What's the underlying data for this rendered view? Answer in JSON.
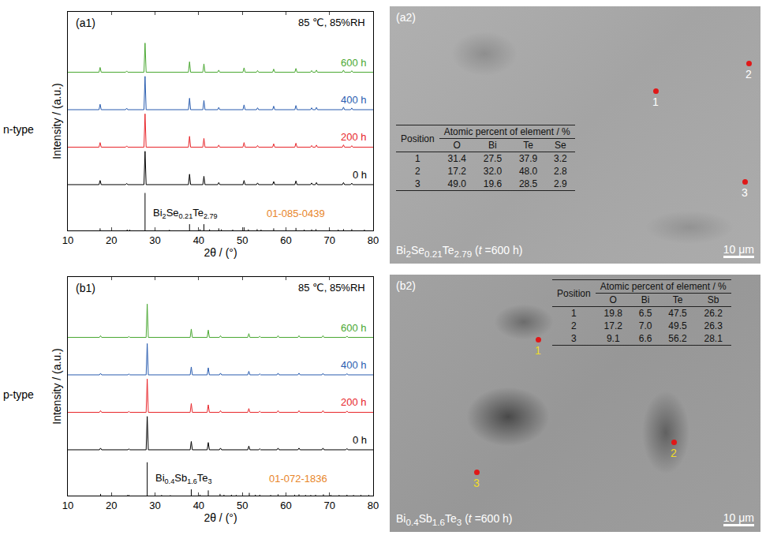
{
  "chart_data": [
    {
      "type": "line",
      "panel": "(a1)",
      "row_label": "n-type",
      "note": "85 ℃, 85%RH",
      "xlabel": "2θ / (°)",
      "ylabel": "Intensity / (a.u.)",
      "xlim": [
        10,
        80
      ],
      "xticks": [
        10,
        20,
        30,
        40,
        50,
        60,
        70,
        80
      ],
      "ylim": [
        0,
        105
      ],
      "tick_labels": "x",
      "grid": false,
      "x": [
        10,
        17.15,
        17.4,
        17.65,
        23.25,
        23.5,
        23.75,
        27.45,
        27.7,
        27.95,
        37.65,
        37.9,
        38.15,
        40.95,
        41.2,
        41.45,
        44.35,
        44.6,
        44.85,
        50.15,
        50.4,
        50.65,
        53.25,
        53.5,
        53.75,
        56.95,
        57.2,
        57.45,
        62.05,
        62.3,
        62.55,
        65.65,
        65.9,
        66.15,
        66.75,
        67.0,
        67.25,
        72.95,
        73.2,
        73.45,
        74.85,
        75.1,
        75.35,
        80
      ],
      "series": [
        {
          "name": "0 h",
          "color": "#000000",
          "values": [
            22,
            22,
            24,
            22,
            22,
            22.6,
            22,
            22,
            38,
            22,
            22,
            27,
            22,
            22,
            26,
            22,
            22,
            23,
            22,
            22,
            24,
            22,
            22,
            22.8,
            22,
            22,
            23.5,
            22,
            22,
            23.8,
            22,
            22,
            22.8,
            22,
            22,
            23,
            22,
            22,
            23,
            22,
            22,
            22.7,
            22,
            22
          ]
        },
        {
          "name": "200 h",
          "color": "#e8262b",
          "values": [
            40,
            40,
            42.2,
            40,
            40,
            40.6,
            40,
            40,
            56,
            40,
            40,
            45.2,
            40,
            40,
            44.2,
            40,
            40,
            41,
            40,
            40,
            42.2,
            40,
            40,
            40.8,
            40,
            40,
            41.6,
            40,
            40,
            41.9,
            40,
            40,
            40.8,
            40,
            40,
            41,
            40,
            40,
            41.1,
            40,
            40,
            40.7,
            40,
            40
          ]
        },
        {
          "name": "400 h",
          "color": "#2a5db0",
          "values": [
            58,
            58,
            60.6,
            58,
            58,
            58.7,
            58,
            58,
            74,
            58,
            58,
            63.5,
            58,
            58,
            62.4,
            58,
            58,
            59.1,
            58,
            58,
            60.3,
            58,
            58,
            58.9,
            58,
            58,
            59.7,
            58,
            58,
            60,
            58,
            58,
            58.9,
            58,
            58,
            59.1,
            58,
            58,
            59.2,
            58,
            58,
            58.8,
            58,
            58
          ]
        },
        {
          "name": "600 h",
          "color": "#4aa832",
          "values": [
            76,
            76,
            78.3,
            76,
            76,
            76.6,
            76,
            76,
            90,
            76,
            76,
            81,
            76,
            76,
            80,
            76,
            76,
            77,
            76,
            76,
            78.1,
            76,
            76,
            76.8,
            76,
            76,
            77.5,
            76,
            76,
            77.8,
            76,
            76,
            76.8,
            76,
            76,
            77,
            76,
            76,
            77,
            76,
            76,
            76.7,
            76,
            76
          ]
        }
      ],
      "reference": {
        "name": "Bi2Se0.21Te2.79",
        "color": "#000000",
        "card": {
          "text": "01-085-0439",
          "color": "#e8862a"
        },
        "x": [
          17.4,
          23.6,
          24.2,
          27.7,
          33.3,
          37.9,
          40.3,
          41.2,
          42.5,
          44.6,
          45.2,
          47.8,
          50.4,
          51.4,
          53.4,
          54.3,
          57.2,
          62.3,
          64.2,
          65.9,
          66.9,
          70.0,
          72.0,
          73.2,
          75.1,
          78.0
        ],
        "values": [
          1,
          0.4,
          0.3,
          18,
          0.3,
          3,
          0.5,
          3,
          0.5,
          1,
          0.5,
          0.4,
          1.5,
          0.5,
          0.6,
          0.4,
          1,
          1.2,
          0.4,
          0.5,
          0.6,
          0.4,
          0.4,
          0.6,
          0.6,
          0.4
        ]
      }
    },
    {
      "type": "line",
      "panel": "(b1)",
      "row_label": "p-type",
      "note": "85 ℃, 85%RH",
      "xlabel": "2θ / (°)",
      "ylabel": "Intensity / (a.u.)",
      "xlim": [
        10,
        80
      ],
      "xticks": [
        10,
        20,
        30,
        40,
        50,
        60,
        70,
        80
      ],
      "ylim": [
        0,
        105
      ],
      "tick_labels": "x",
      "grid": false,
      "x": [
        10,
        17.25,
        17.5,
        17.75,
        23.75,
        24.0,
        24.25,
        27.95,
        28.2,
        28.45,
        38.05,
        38.3,
        38.55,
        41.95,
        42.2,
        42.45,
        44.75,
        45.0,
        45.25,
        51.25,
        51.5,
        51.75,
        53.75,
        54.0,
        54.25,
        57.95,
        58.2,
        58.45,
        62.75,
        63.0,
        63.25,
        68.25,
        68.5,
        68.75,
        73.75,
        74.0,
        74.25,
        80
      ],
      "series": [
        {
          "name": "0 h",
          "color": "#000000",
          "values": [
            22,
            22,
            22.8,
            22,
            22,
            22.4,
            22,
            22,
            38,
            22,
            22,
            26,
            22,
            22,
            25.5,
            22,
            22,
            22.8,
            22,
            22,
            23.8,
            22,
            22,
            22.5,
            22,
            22,
            22.8,
            22,
            22,
            22.8,
            22,
            22,
            22.8,
            22,
            22,
            22.6,
            22,
            22
          ]
        },
        {
          "name": "200 h",
          "color": "#e8262b",
          "values": [
            40,
            40,
            40.8,
            40,
            40,
            40.4,
            40,
            40,
            56,
            40,
            40,
            44.2,
            40,
            40,
            43.6,
            40,
            40,
            40.8,
            40,
            40,
            41.8,
            40,
            40,
            40.5,
            40,
            40,
            40.8,
            40,
            40,
            40.8,
            40,
            40,
            40.8,
            40,
            40,
            40.6,
            40,
            40
          ]
        },
        {
          "name": "400 h",
          "color": "#2a5db0",
          "values": [
            58,
            58,
            58.7,
            58,
            58,
            58.4,
            58,
            58,
            73,
            58,
            58,
            61.8,
            58,
            58,
            61.4,
            58,
            58,
            58.8,
            58,
            58,
            59.7,
            58,
            58,
            58.5,
            58,
            58,
            58.8,
            58,
            58,
            58.8,
            58,
            58,
            58.7,
            58,
            58,
            58.6,
            58,
            58
          ]
        },
        {
          "name": "600 h",
          "color": "#4aa832",
          "values": [
            76,
            76,
            76.8,
            76,
            76,
            76.4,
            76,
            76,
            92,
            76,
            76,
            80,
            76,
            76,
            79.5,
            76,
            76,
            76.8,
            76,
            76,
            77.8,
            76,
            76,
            76.5,
            76,
            76,
            76.8,
            76,
            76,
            76.8,
            76,
            76,
            76.8,
            76,
            76,
            76.6,
            76,
            76
          ]
        }
      ],
      "reference": {
        "name": "Bi0.4Sb1.6Te3",
        "color": "#000000",
        "card": {
          "text": "01-072-1836",
          "color": "#e8862a"
        },
        "x": [
          17.5,
          23.7,
          24.0,
          28.2,
          31.5,
          33.5,
          38.3,
          40.3,
          42.2,
          44.9,
          45.8,
          47.5,
          48.6,
          51.6,
          53.0,
          54.0,
          56.5,
          58.2,
          62.0,
          63.0,
          64.5,
          65.7,
          66.8,
          68.6,
          70.3,
          72.2,
          74.0,
          75.5,
          77.2,
          79.0
        ],
        "values": [
          0.8,
          0.3,
          0.3,
          16,
          0.3,
          0.2,
          3,
          0.4,
          2.5,
          0.8,
          0.4,
          0.4,
          0.3,
          1.3,
          0.4,
          0.4,
          0.3,
          0.6,
          0.4,
          0.6,
          0.3,
          0.3,
          0.4,
          0.6,
          0.3,
          0.3,
          0.4,
          0.3,
          0.3,
          0.3
        ]
      }
    }
  ],
  "images": [
    {
      "panel": "(a2)",
      "caption": "Bi2Se0.21Te2.79 (t =600 h)",
      "scale": "10 μm",
      "point_color": "#ffffff",
      "table": {
        "header": "Position",
        "group": "Atomic percent of element / %",
        "columns": [
          "O",
          "Bi",
          "Te",
          "Se"
        ],
        "rows": [
          [
            "1",
            "31.4",
            "27.5",
            "37.9",
            "3.2"
          ],
          [
            "2",
            "17.2",
            "32.0",
            "48.0",
            "2.8"
          ],
          [
            "3",
            "49.0",
            "19.6",
            "28.5",
            "2.9"
          ]
        ]
      }
    },
    {
      "panel": "(b2)",
      "caption": "Bi0.4Sb1.6Te3 (t =600 h)",
      "scale": "10 μm",
      "point_color": "#f0dc28",
      "table": {
        "header": "Position",
        "group": "Atomic percent of element / %",
        "columns": [
          "O",
          "Bi",
          "Te",
          "Sb"
        ],
        "rows": [
          [
            "1",
            "19.8",
            "6.5",
            "47.5",
            "26.2"
          ],
          [
            "2",
            "17.2",
            "7.0",
            "49.5",
            "26.3"
          ],
          [
            "3",
            "9.1",
            "6.6",
            "56.2",
            "28.1"
          ]
        ]
      }
    }
  ]
}
